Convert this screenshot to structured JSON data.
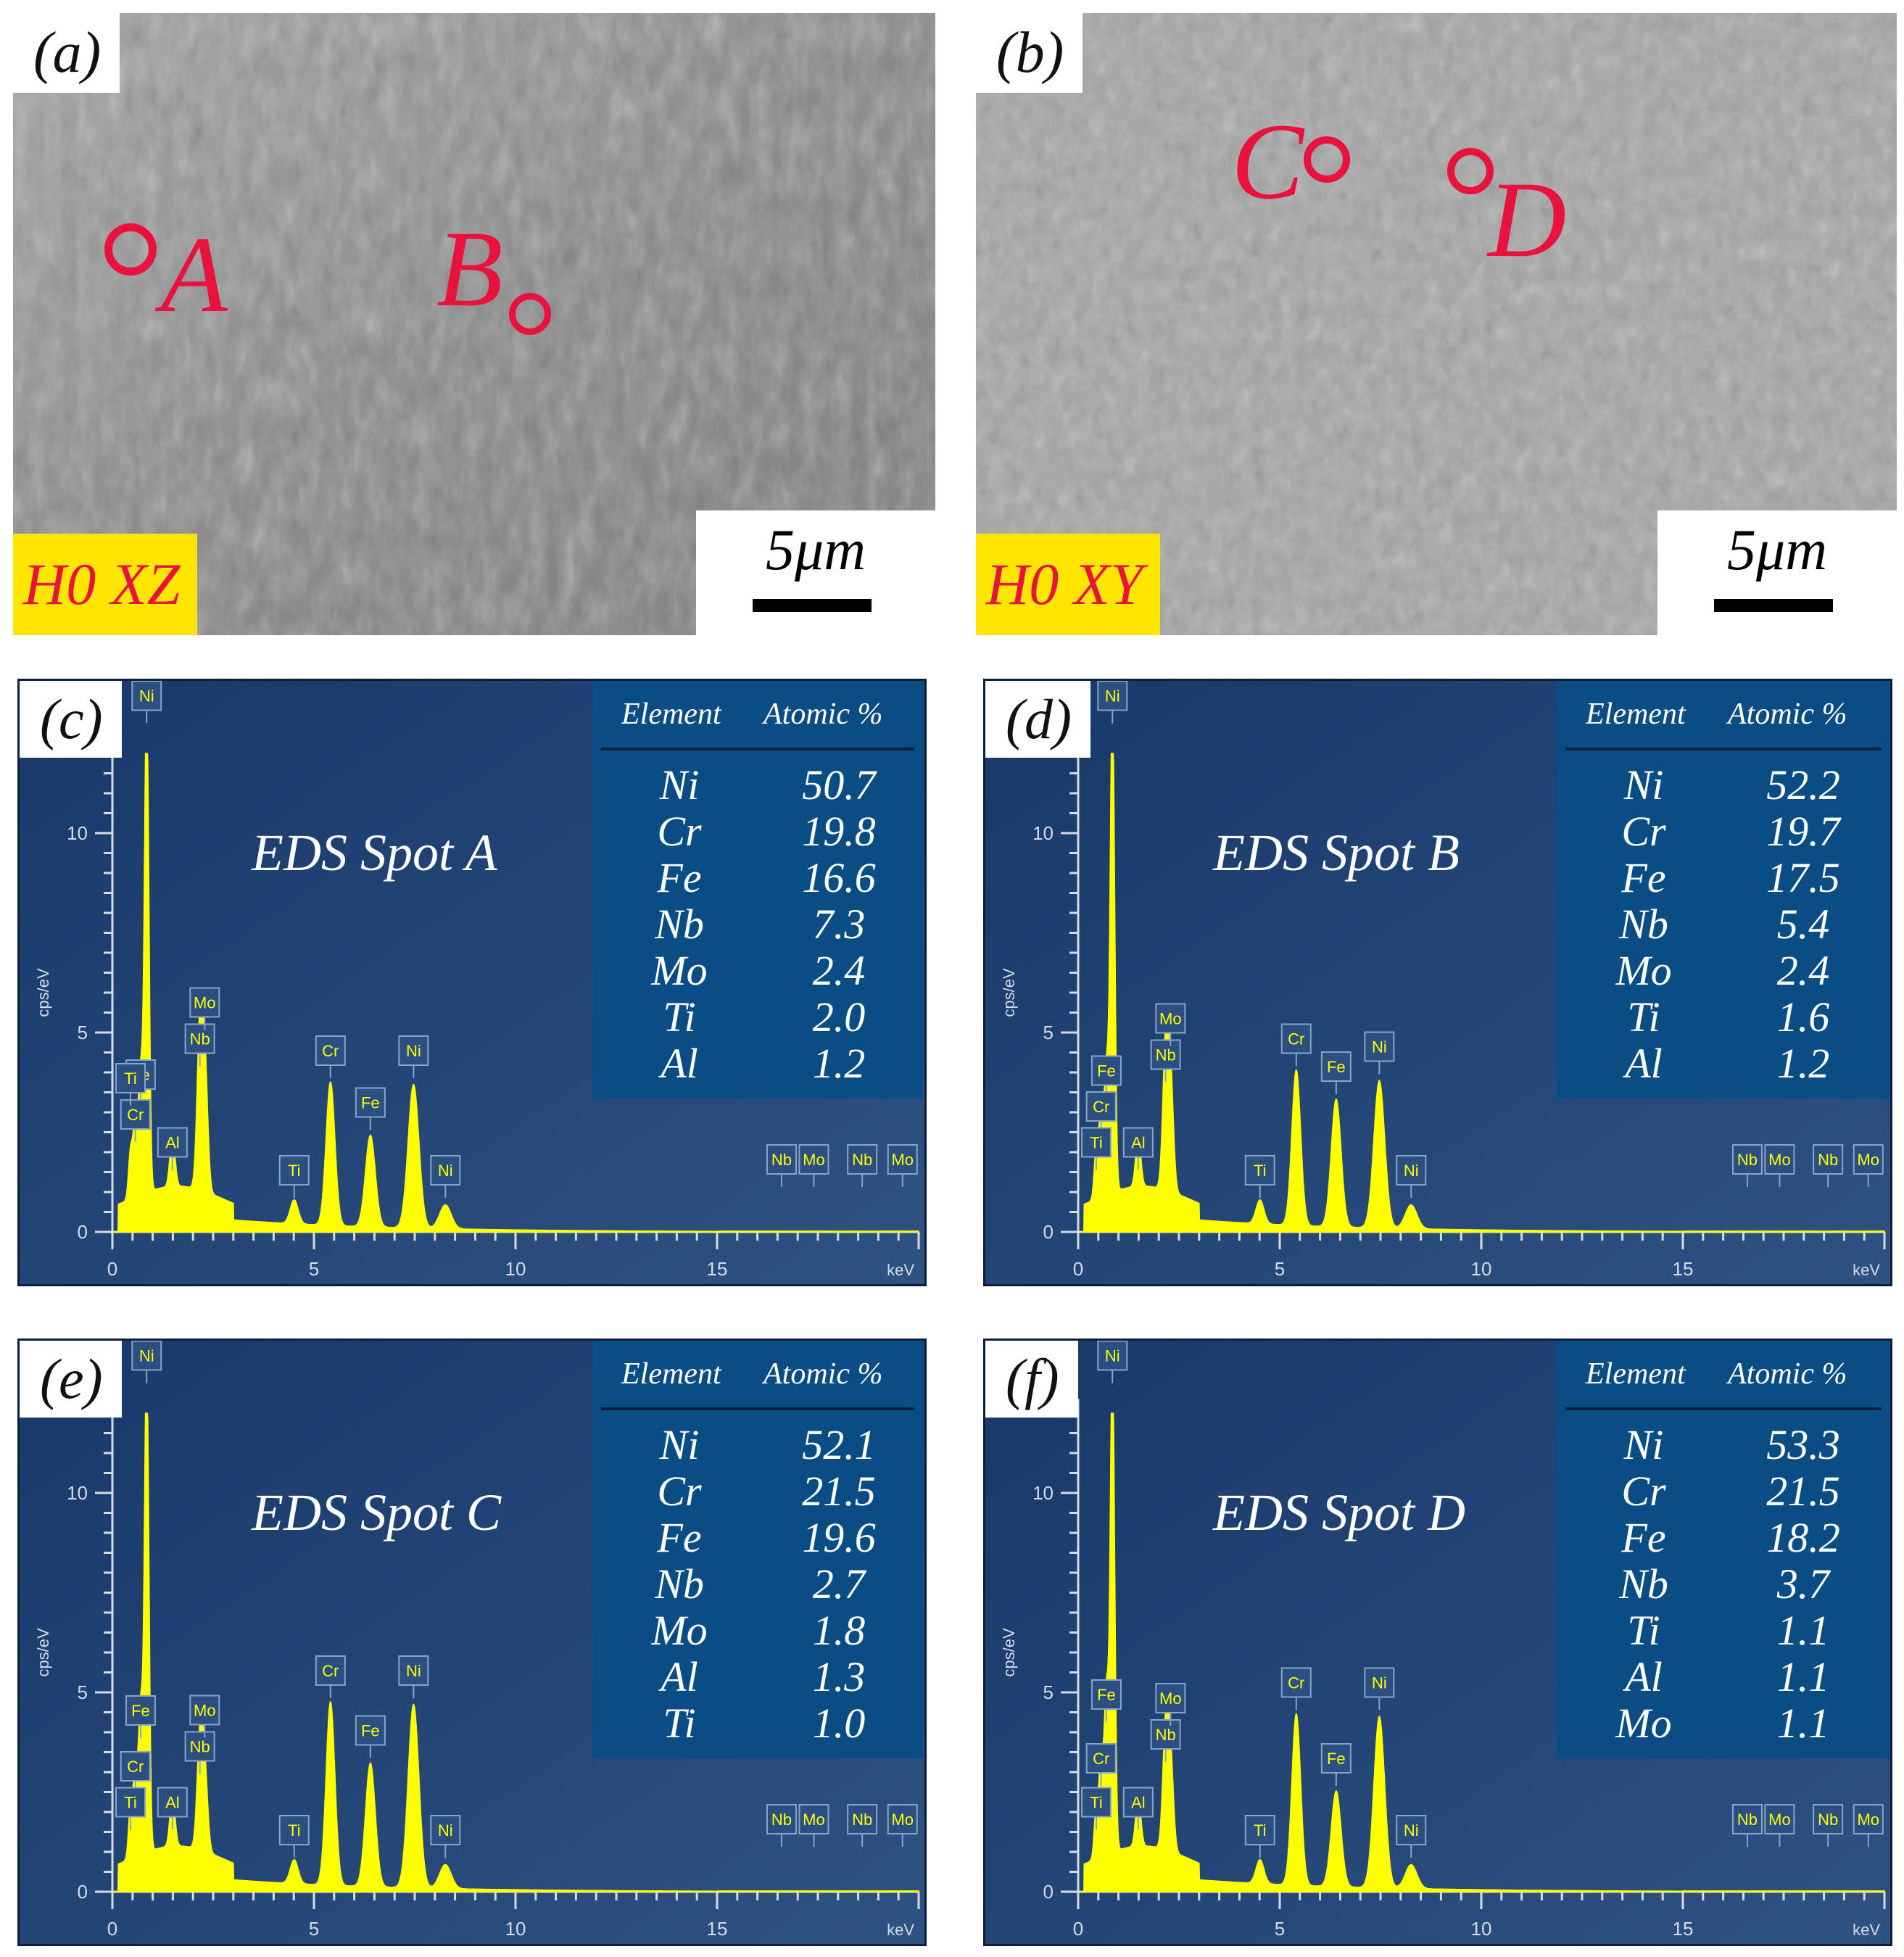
{
  "sem_panels": [
    {
      "label": "(a)",
      "tag": "H0 XZ",
      "scale_label": "5μm",
      "spots": [
        "A",
        "B"
      ]
    },
    {
      "label": "(b)",
      "tag": "H0 XY",
      "scale_label": "5μm",
      "spots": [
        "C",
        "D"
      ]
    }
  ],
  "colors": {
    "spectrum": "#ffff00",
    "panel_bg": "#1f3e6e",
    "table_bg": "#0a4c84",
    "marker": "#e8123c",
    "tag_bg": "#ffe600"
  },
  "chart_data": [
    {
      "type": "line",
      "panel_label": "(c)",
      "title": "EDS Spot A",
      "xlabel": "keV",
      "ylabel": "cps/eV",
      "xlim": [
        0,
        20
      ],
      "ylim": [
        0,
        12
      ],
      "x_ticks": [
        "0",
        "5",
        "10",
        "15"
      ],
      "y_ticks": [
        "0",
        "5",
        "10"
      ],
      "table": {
        "headers": [
          "Element",
          "Atomic %"
        ],
        "rows": [
          [
            "Ni",
            "50.7"
          ],
          [
            "Cr",
            "19.8"
          ],
          [
            "Fe",
            "16.6"
          ],
          [
            "Nb",
            "7.3"
          ],
          [
            "Mo",
            "2.4"
          ],
          [
            "Ti",
            "2.0"
          ],
          [
            "Al",
            "1.2"
          ]
        ]
      },
      "peaks": [
        {
          "label": "Ni",
          "x": 0.85,
          "y": 12.5
        },
        {
          "label": "Fe",
          "x": 0.7,
          "y": 3.0
        },
        {
          "label": "Cr",
          "x": 0.57,
          "y": 2.0
        },
        {
          "label": "Ti",
          "x": 0.45,
          "y": 1.2
        },
        {
          "label": "Al",
          "x": 1.49,
          "y": 1.3
        },
        {
          "label": "Nb",
          "x": 2.17,
          "y": 3.9
        },
        {
          "label": "Mo",
          "x": 2.29,
          "y": 3.2
        },
        {
          "label": "Ti",
          "x": 4.51,
          "y": 0.6
        },
        {
          "label": "Cr",
          "x": 5.41,
          "y": 3.6
        },
        {
          "label": "Fe",
          "x": 6.4,
          "y": 2.3
        },
        {
          "label": "Ni",
          "x": 7.47,
          "y": 3.6
        },
        {
          "label": "Ni",
          "x": 8.26,
          "y": 0.6
        },
        {
          "label": "Nb",
          "x": 16.6,
          "y": 0.0
        },
        {
          "label": "Mo",
          "x": 17.4,
          "y": 0.0
        },
        {
          "label": "Nb",
          "x": 18.6,
          "y": 0.0
        },
        {
          "label": "Mo",
          "x": 19.6,
          "y": 0.0
        }
      ]
    },
    {
      "type": "line",
      "panel_label": "(d)",
      "title": "EDS Spot B",
      "xlabel": "keV",
      "ylabel": "cps/eV",
      "xlim": [
        0,
        20
      ],
      "ylim": [
        0,
        12
      ],
      "x_ticks": [
        "0",
        "5",
        "10",
        "15"
      ],
      "y_ticks": [
        "0",
        "5",
        "10"
      ],
      "table": {
        "headers": [
          "Element",
          "Atomic %"
        ],
        "rows": [
          [
            "Ni",
            "52.2"
          ],
          [
            "Cr",
            "19.7"
          ],
          [
            "Fe",
            "17.5"
          ],
          [
            "Nb",
            "5.4"
          ],
          [
            "Mo",
            "2.4"
          ],
          [
            "Ti",
            "1.6"
          ],
          [
            "Al",
            "1.2"
          ]
        ]
      },
      "peaks": [
        {
          "label": "Ni",
          "x": 0.85,
          "y": 12.5
        },
        {
          "label": "Fe",
          "x": 0.7,
          "y": 3.1
        },
        {
          "label": "Cr",
          "x": 0.57,
          "y": 2.2
        },
        {
          "label": "Ti",
          "x": 0.45,
          "y": 1.3
        },
        {
          "label": "Al",
          "x": 1.49,
          "y": 1.3
        },
        {
          "label": "Nb",
          "x": 2.17,
          "y": 3.5
        },
        {
          "label": "Mo",
          "x": 2.29,
          "y": 2.8
        },
        {
          "label": "Ti",
          "x": 4.51,
          "y": 0.6
        },
        {
          "label": "Cr",
          "x": 5.41,
          "y": 3.9
        },
        {
          "label": "Fe",
          "x": 6.4,
          "y": 3.2
        },
        {
          "label": "Ni",
          "x": 7.47,
          "y": 3.7
        },
        {
          "label": "Ni",
          "x": 8.26,
          "y": 0.6
        },
        {
          "label": "Nb",
          "x": 16.6,
          "y": 0.0
        },
        {
          "label": "Mo",
          "x": 17.4,
          "y": 0.0
        },
        {
          "label": "Nb",
          "x": 18.6,
          "y": 0.0
        },
        {
          "label": "Mo",
          "x": 19.6,
          "y": 0.0
        }
      ]
    },
    {
      "type": "line",
      "panel_label": "(e)",
      "title": "EDS Spot C",
      "xlabel": "keV",
      "ylabel": "cps/eV",
      "xlim": [
        0,
        20
      ],
      "ylim": [
        0,
        12
      ],
      "x_ticks": [
        "0",
        "5",
        "10",
        "15"
      ],
      "y_ticks": [
        "0",
        "5",
        "10"
      ],
      "table": {
        "headers": [
          "Element",
          "Atomic %"
        ],
        "rows": [
          [
            "Ni",
            "52.1"
          ],
          [
            "Cr",
            "21.5"
          ],
          [
            "Fe",
            "19.6"
          ],
          [
            "Nb",
            "2.7"
          ],
          [
            "Mo",
            "1.8"
          ],
          [
            "Al",
            "1.3"
          ],
          [
            "Ti",
            "1.0"
          ]
        ]
      },
      "peaks": [
        {
          "label": "Ni",
          "x": 0.85,
          "y": 12.5
        },
        {
          "label": "Fe",
          "x": 0.7,
          "y": 3.6
        },
        {
          "label": "Cr",
          "x": 0.57,
          "y": 2.2
        },
        {
          "label": "Ti",
          "x": 0.45,
          "y": 1.3
        },
        {
          "label": "Al",
          "x": 1.49,
          "y": 1.3
        },
        {
          "label": "Nb",
          "x": 2.17,
          "y": 2.7
        },
        {
          "label": "Mo",
          "x": 2.29,
          "y": 2.0
        },
        {
          "label": "Ti",
          "x": 4.51,
          "y": 0.6
        },
        {
          "label": "Cr",
          "x": 5.41,
          "y": 4.6
        },
        {
          "label": "Fe",
          "x": 6.4,
          "y": 3.1
        },
        {
          "label": "Ni",
          "x": 7.47,
          "y": 4.6
        },
        {
          "label": "Ni",
          "x": 8.26,
          "y": 0.6
        },
        {
          "label": "Nb",
          "x": 16.6,
          "y": 0.0
        },
        {
          "label": "Mo",
          "x": 17.4,
          "y": 0.0
        },
        {
          "label": "Nb",
          "x": 18.6,
          "y": 0.0
        },
        {
          "label": "Mo",
          "x": 19.6,
          "y": 0.0
        }
      ]
    },
    {
      "type": "line",
      "panel_label": "(f)",
      "title": "EDS Spot D",
      "xlabel": "keV",
      "ylabel": "cps/eV",
      "xlim": [
        0,
        20
      ],
      "ylim": [
        0,
        12
      ],
      "x_ticks": [
        "0",
        "5",
        "10",
        "15"
      ],
      "y_ticks": [
        "0",
        "5",
        "10"
      ],
      "table": {
        "headers": [
          "Element",
          "Atomic %"
        ],
        "rows": [
          [
            "Ni",
            "53.3"
          ],
          [
            "Cr",
            "21.5"
          ],
          [
            "Fe",
            "18.2"
          ],
          [
            "Nb",
            "3.7"
          ],
          [
            "Ti",
            "1.1"
          ],
          [
            "Al",
            "1.1"
          ],
          [
            "Mo",
            "1.1"
          ]
        ]
      },
      "peaks": [
        {
          "label": "Ni",
          "x": 0.85,
          "y": 12.5
        },
        {
          "label": "Fe",
          "x": 0.7,
          "y": 4.0
        },
        {
          "label": "Cr",
          "x": 0.57,
          "y": 2.4
        },
        {
          "label": "Ti",
          "x": 0.45,
          "y": 1.3
        },
        {
          "label": "Al",
          "x": 1.49,
          "y": 1.3
        },
        {
          "label": "Nb",
          "x": 2.17,
          "y": 3.0
        },
        {
          "label": "Mo",
          "x": 2.29,
          "y": 2.3
        },
        {
          "label": "Ti",
          "x": 4.51,
          "y": 0.6
        },
        {
          "label": "Cr",
          "x": 5.41,
          "y": 4.3
        },
        {
          "label": "Fe",
          "x": 6.4,
          "y": 2.4
        },
        {
          "label": "Ni",
          "x": 7.47,
          "y": 4.3
        },
        {
          "label": "Ni",
          "x": 8.26,
          "y": 0.6
        },
        {
          "label": "Nb",
          "x": 16.6,
          "y": 0.0
        },
        {
          "label": "Mo",
          "x": 17.4,
          "y": 0.0
        },
        {
          "label": "Nb",
          "x": 18.6,
          "y": 0.0
        },
        {
          "label": "Mo",
          "x": 19.6,
          "y": 0.0
        }
      ]
    }
  ]
}
